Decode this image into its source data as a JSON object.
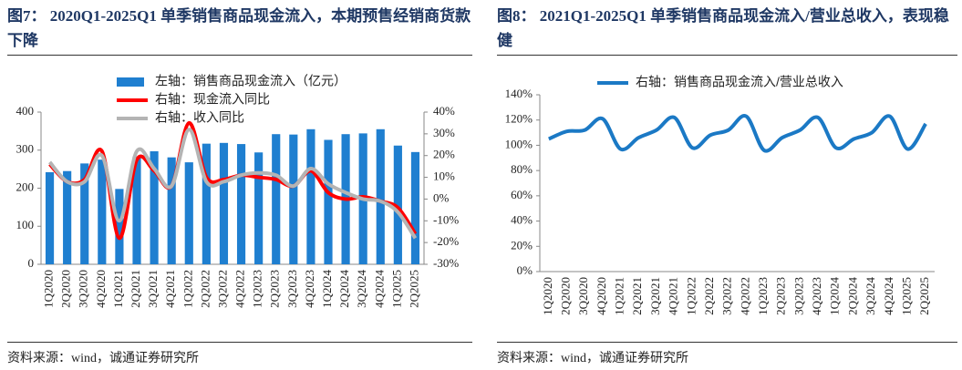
{
  "chart_data": [
    {
      "type": "bar",
      "title": "图7：  2020Q1-2025Q1 单季销售商品现金流入，本期预售经销商货款下降",
      "source": "资料来源：wind，诚通证券研究所",
      "categories": [
        "1Q2020",
        "2Q2020",
        "3Q2020",
        "4Q2020",
        "1Q2021",
        "2Q2021",
        "3Q2021",
        "4Q2021",
        "1Q2022",
        "2Q2022",
        "3Q2022",
        "4Q2022",
        "1Q2023",
        "2Q2023",
        "3Q2023",
        "4Q2023",
        "1Q2024",
        "2Q2024",
        "3Q2024",
        "4Q2024",
        "1Q2025",
        "2Q2025"
      ],
      "ylim": [
        0,
        400
      ],
      "yticks": [
        0,
        100,
        200,
        300,
        400
      ],
      "y2lim": [
        -30,
        40
      ],
      "y2ticks": [
        {
          "value": -30,
          "label": "-30%"
        },
        {
          "value": -20,
          "label": "-20%"
        },
        {
          "value": -10,
          "label": "-10%"
        },
        {
          "value": 0,
          "label": "0%"
        },
        {
          "value": 10,
          "label": "10%"
        },
        {
          "value": 20,
          "label": "20%"
        },
        {
          "value": 30,
          "label": "30%"
        },
        {
          "value": 40,
          "label": "40%"
        }
      ],
      "series": [
        {
          "name": "左轴：销售商品现金流入（亿元）",
          "type": "bar",
          "color": "#1f7fd0",
          "values": [
            242,
            245,
            265,
            275,
            198,
            283,
            297,
            281,
            268,
            317,
            319,
            316,
            294,
            342,
            341,
            355,
            327,
            342,
            344,
            355,
            312,
            295
          ]
        },
        {
          "name": "右轴：现金流入同比",
          "type": "line",
          "axis": "y2",
          "color": "#ff0000",
          "values": [
            16,
            8,
            9,
            22,
            -18,
            18,
            13,
            6,
            35,
            10,
            9,
            11,
            10,
            9,
            6,
            13,
            3,
            0,
            1,
            -1,
            -4,
            -16
          ]
        },
        {
          "name": "右轴：收入同比",
          "type": "line",
          "axis": "y2",
          "color": "#b4b4b4",
          "values": [
            17,
            8,
            8,
            20,
            -10,
            22,
            14,
            6,
            32,
            8,
            8,
            11,
            12,
            11,
            6,
            14,
            7,
            3,
            0,
            -1,
            -6,
            -18
          ]
        }
      ]
    },
    {
      "type": "line",
      "title": "图8：  2021Q1-2025Q1 单季销售商品现金流入/营业总收入，表现稳健",
      "source": "资料来源：wind，诚通证券研究所",
      "categories": [
        "1Q2020",
        "2Q2020",
        "3Q2020",
        "4Q2020",
        "1Q2021",
        "2Q2021",
        "3Q2021",
        "4Q2021",
        "1Q2022",
        "2Q2022",
        "3Q2022",
        "4Q2022",
        "1Q2023",
        "2Q2023",
        "3Q2023",
        "4Q2023",
        "1Q2024",
        "2Q2024",
        "3Q2024",
        "4Q2024",
        "1Q2025",
        "2Q2025"
      ],
      "ylim": [
        0,
        140
      ],
      "yticks": [
        {
          "value": 0,
          "label": "0%"
        },
        {
          "value": 20,
          "label": "20%"
        },
        {
          "value": 40,
          "label": "40%"
        },
        {
          "value": 60,
          "label": "60%"
        },
        {
          "value": 80,
          "label": "80%"
        },
        {
          "value": 100,
          "label": "100%"
        },
        {
          "value": 120,
          "label": "120%"
        },
        {
          "value": 140,
          "label": "140%"
        }
      ],
      "series": [
        {
          "name": "右轴：销售商品现金流入/营业总收入",
          "type": "line",
          "color": "#1b79c5",
          "values": [
            105,
            111,
            112,
            121,
            97,
            106,
            112,
            122,
            98,
            108,
            112,
            123,
            96,
            106,
            112,
            122,
            98,
            105,
            110,
            123,
            97,
            117
          ]
        }
      ]
    }
  ]
}
